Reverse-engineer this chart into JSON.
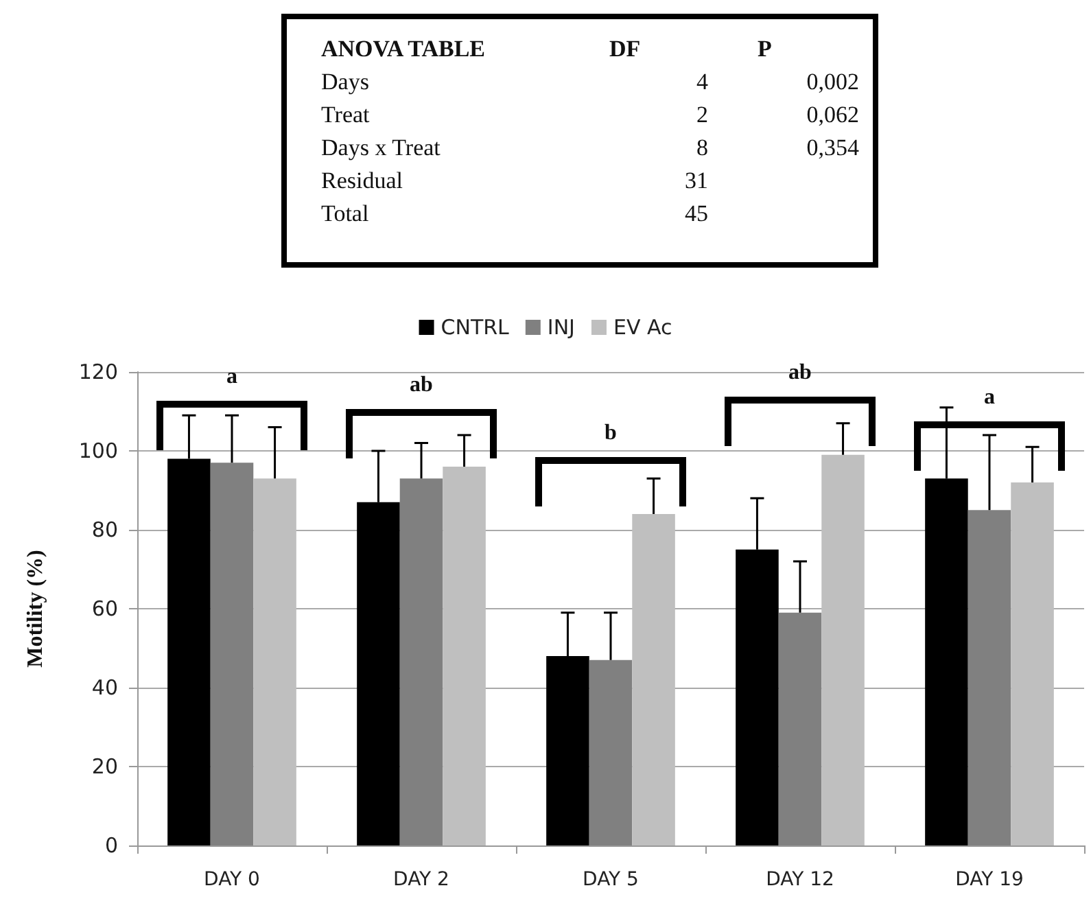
{
  "chart_data": [
    {
      "type": "other",
      "annotations": [
        "ANOVA  TABLE",
        "DF",
        "P",
        "Days",
        "4",
        "0,002",
        "Treat",
        "2",
        "0,062",
        "Days x Treat",
        "8",
        "0,354",
        "Residual",
        "31",
        null,
        "Total",
        "45",
        null
      ]
    },
    {
      "type": "bar",
      "categories": [
        "DAY 0",
        "DAY 2",
        "DAY 5",
        "DAY 12",
        "DAY 19"
      ],
      "ylabel": "Motility (%)",
      "ylim": [
        0,
        120
      ],
      "yticks": [
        0,
        20,
        40,
        60,
        80,
        100,
        120
      ],
      "grid": "y",
      "legend": "top",
      "series": [
        {
          "name": "CNTRL",
          "color": "#000000",
          "values": [
            98,
            87,
            48,
            75,
            93
          ],
          "errors": [
            [
              98,
              109
            ],
            [
              87,
              100
            ],
            [
              48,
              59
            ],
            [
              75,
              88
            ],
            [
              93,
              111
            ]
          ]
        },
        {
          "name": "INJ",
          "color": "#808080",
          "values": [
            97,
            93,
            47,
            59,
            85
          ],
          "errors": [
            [
              97,
              109
            ],
            [
              93,
              102
            ],
            [
              47,
              59
            ],
            [
              59,
              72
            ],
            [
              85,
              104
            ]
          ]
        },
        {
          "name": "EV Ac",
          "color": "#bfbfbf",
          "values": [
            93,
            96,
            84,
            99,
            92
          ],
          "errors": [
            [
              93,
              106
            ],
            [
              96,
              104
            ],
            [
              84,
              93
            ],
            [
              99,
              107
            ],
            [
              92,
              101
            ]
          ]
        }
      ],
      "annotations": [
        "a",
        "ab",
        "b",
        "ab",
        "a"
      ]
    }
  ]
}
